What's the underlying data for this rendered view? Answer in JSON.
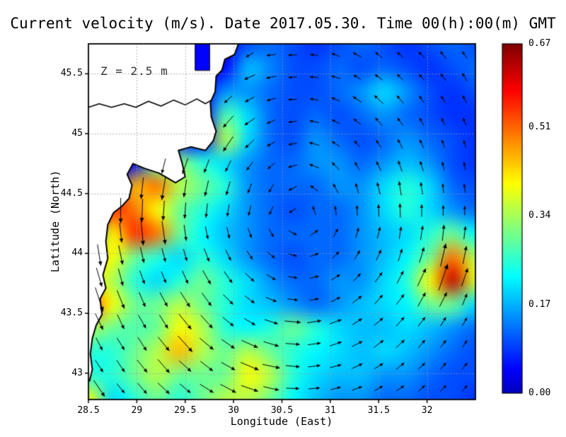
{
  "chart_data": {
    "type": "heatmap",
    "title": "Current velocity (m/s). Date 2017.05.30. Time 00(h):00(m) GMT",
    "annotation": "Z = 2.5 m",
    "xlabel": "Longitude (East)",
    "ylabel": "Latitude (North)",
    "units": "m/s",
    "colormap": "jet",
    "vmin": 0,
    "vmax": 0.67,
    "xlim": [
      28.5,
      32.5
    ],
    "ylim": [
      42.78,
      45.75
    ],
    "xticks": [
      28.5,
      29,
      29.5,
      30,
      30.5,
      31,
      31.5,
      32
    ],
    "xtick_labels": [
      "28.5",
      "29",
      "29.5",
      "30",
      "30.5",
      "31",
      "31.5",
      "32"
    ],
    "yticks": [
      43,
      43.5,
      44,
      44.5,
      45,
      45.5
    ],
    "ytick_labels": [
      "43",
      "43.5",
      "44",
      "44.5",
      "45",
      "45.5"
    ],
    "colorbar_ticks": [
      0.67,
      0.51,
      0.34,
      0.17,
      0
    ],
    "colorbar_tick_labels": [
      "0.67",
      "0.51",
      "0.34",
      "0.17",
      "0.00"
    ],
    "grid": {
      "cols": 18,
      "rows": 16,
      "origin": "top-left",
      "speed": [
        [
          0.05,
          0.05,
          0.05,
          0.05,
          0.05,
          0.05,
          0.05,
          0.1,
          0.12,
          0.1,
          0.08,
          0.1,
          0.12,
          0.1,
          0.08,
          0.1,
          0.12,
          0.1
        ],
        [
          0.05,
          0.05,
          0.05,
          0.05,
          0.05,
          0.05,
          0.05,
          0.18,
          0.14,
          0.1,
          0.1,
          0.12,
          0.1,
          0.12,
          0.1,
          0.08,
          0.1,
          0.12
        ],
        [
          0.05,
          0.05,
          0.05,
          0.05,
          0.05,
          0.05,
          0.15,
          0.15,
          0.12,
          0.1,
          0.1,
          0.12,
          0.15,
          0.2,
          0.15,
          0.1,
          0.08,
          0.1
        ],
        [
          0.05,
          0.05,
          0.05,
          0.05,
          0.05,
          0.05,
          0.28,
          0.2,
          0.12,
          0.1,
          0.12,
          0.1,
          0.12,
          0.15,
          0.12,
          0.1,
          0.08,
          0.08
        ],
        [
          0.05,
          0.05,
          0.05,
          0.05,
          0.05,
          0.05,
          0.35,
          0.2,
          0.12,
          0.1,
          0.15,
          0.12,
          0.1,
          0.12,
          0.15,
          0.12,
          0.1,
          0.08
        ],
        [
          0.05,
          0.05,
          0.05,
          0.28,
          0.32,
          0.25,
          0.2,
          0.15,
          0.12,
          0.12,
          0.15,
          0.15,
          0.12,
          0.15,
          0.18,
          0.15,
          0.1,
          0.08
        ],
        [
          0.05,
          0.05,
          0.45,
          0.5,
          0.35,
          0.3,
          0.25,
          0.15,
          0.12,
          0.12,
          0.12,
          0.15,
          0.15,
          0.2,
          0.25,
          0.2,
          0.12,
          0.1
        ],
        [
          0.05,
          0.55,
          0.5,
          0.4,
          0.3,
          0.25,
          0.2,
          0.15,
          0.12,
          0.1,
          0.12,
          0.12,
          0.15,
          0.2,
          0.25,
          0.2,
          0.15,
          0.12
        ],
        [
          0.05,
          0.4,
          0.55,
          0.5,
          0.3,
          0.22,
          0.18,
          0.15,
          0.12,
          0.12,
          0.12,
          0.12,
          0.15,
          0.18,
          0.2,
          0.25,
          0.3,
          0.22
        ],
        [
          0.45,
          0.4,
          0.3,
          0.25,
          0.2,
          0.25,
          0.2,
          0.15,
          0.12,
          0.1,
          0.12,
          0.12,
          0.15,
          0.18,
          0.22,
          0.3,
          0.5,
          0.35
        ],
        [
          0.4,
          0.35,
          0.25,
          0.2,
          0.25,
          0.3,
          0.25,
          0.2,
          0.15,
          0.12,
          0.12,
          0.15,
          0.15,
          0.2,
          0.25,
          0.4,
          0.62,
          0.38
        ],
        [
          0.55,
          0.4,
          0.3,
          0.3,
          0.35,
          0.3,
          0.25,
          0.2,
          0.18,
          0.15,
          0.12,
          0.15,
          0.18,
          0.2,
          0.22,
          0.3,
          0.3,
          0.2
        ],
        [
          0.35,
          0.3,
          0.28,
          0.3,
          0.4,
          0.35,
          0.25,
          0.22,
          0.25,
          0.3,
          0.25,
          0.2,
          0.18,
          0.18,
          0.2,
          0.18,
          0.15,
          0.12
        ],
        [
          0.25,
          0.25,
          0.3,
          0.35,
          0.45,
          0.35,
          0.3,
          0.35,
          0.3,
          0.25,
          0.22,
          0.2,
          0.18,
          0.2,
          0.18,
          0.15,
          0.12,
          0.1
        ],
        [
          0.25,
          0.25,
          0.3,
          0.35,
          0.3,
          0.3,
          0.3,
          0.4,
          0.35,
          0.25,
          0.2,
          0.18,
          0.18,
          0.15,
          0.15,
          0.12,
          0.1,
          0.1
        ],
        [
          0.4,
          0.2,
          0.25,
          0.3,
          0.25,
          0.3,
          0.35,
          0.35,
          0.3,
          0.22,
          0.18,
          0.15,
          0.15,
          0.12,
          0.12,
          0.1,
          0.1,
          0.08
        ]
      ],
      "direction_deg": [
        [
          0,
          0,
          0,
          0,
          0,
          0,
          0,
          -150,
          -172,
          -178,
          172,
          158,
          152,
          141,
          138,
          134,
          128,
          124
        ],
        [
          0,
          0,
          0,
          0,
          0,
          0,
          0,
          -156,
          -168,
          -175,
          176,
          163,
          149,
          143,
          134,
          131,
          126,
          121
        ],
        [
          0,
          0,
          0,
          0,
          0,
          0,
          -138,
          -151,
          -163,
          -176,
          169,
          157,
          146,
          137,
          131,
          124,
          121,
          117
        ],
        [
          0,
          0,
          0,
          0,
          0,
          0,
          -131,
          -146,
          -157,
          -171,
          167,
          153,
          141,
          131,
          126,
          119,
          116,
          113
        ],
        [
          0,
          0,
          0,
          0,
          0,
          0,
          -124,
          -137,
          -152,
          -169,
          164,
          146,
          133,
          124,
          117,
          114,
          109,
          107
        ],
        [
          0,
          0,
          0,
          -104,
          -109,
          -111,
          -117,
          -127,
          -141,
          -164,
          159,
          136,
          121,
          116,
          109,
          107,
          103,
          101
        ],
        [
          0,
          0,
          -96,
          -99,
          -99,
          -103,
          -106,
          -111,
          -121,
          -153,
          144,
          119,
          107,
          104,
          99,
          99,
          96,
          97
        ],
        [
          0,
          -90,
          -92,
          -94,
          -94,
          -96,
          -99,
          -103,
          -114,
          -148,
          108,
          97,
          93,
          92,
          92,
          90,
          89,
          90
        ],
        [
          0,
          -84,
          -85,
          -82,
          -82,
          -79,
          -77,
          -70,
          -61,
          -28,
          34,
          62,
          74,
          76,
          81,
          81,
          84,
          83
        ],
        [
          -81,
          -78,
          -77,
          -75,
          -74,
          -69,
          -64,
          -57,
          -40,
          -15,
          21,
          44,
          59,
          65,
          72,
          73,
          77,
          79
        ],
        [
          -74,
          -75,
          -70,
          -68,
          -66,
          -60,
          -55,
          -43,
          -30,
          -8,
          14,
          32,
          47,
          54,
          63,
          65,
          71,
          71
        ],
        [
          -72,
          -68,
          -67,
          -62,
          -58,
          -54,
          -45,
          -37,
          -22,
          -8,
          11,
          27,
          37,
          49,
          53,
          61,
          63,
          68
        ],
        [
          -65,
          -65,
          -60,
          -58,
          -51,
          -48,
          -39,
          -31,
          -18,
          -5,
          9,
          20,
          33,
          40,
          49,
          52,
          59,
          60
        ],
        [
          -63,
          -58,
          -57,
          -51,
          -48,
          -40,
          -35,
          -24,
          -17,
          -4,
          8,
          19,
          27,
          37,
          42,
          49,
          52,
          58
        ],
        [
          -57,
          -56,
          -51,
          -49,
          -42,
          -38,
          -29,
          -23,
          -12,
          -5,
          7,
          15,
          25,
          31,
          39,
          43,
          50,
          52
        ],
        [
          -56,
          -51,
          -49,
          -43,
          -40,
          -32,
          -28,
          -19,
          -13,
          -2,
          6,
          15,
          20,
          29,
          34,
          41,
          44,
          50
        ]
      ],
      "land_mask": [
        [
          1,
          1,
          1,
          1,
          1,
          1,
          1,
          0,
          0,
          0,
          0,
          0,
          0,
          0,
          0,
          0,
          0,
          0
        ],
        [
          1,
          1,
          1,
          1,
          1,
          1,
          1,
          0,
          0,
          0,
          0,
          0,
          0,
          0,
          0,
          0,
          0,
          0
        ],
        [
          1,
          1,
          1,
          1,
          1,
          1,
          0,
          0,
          0,
          0,
          0,
          0,
          0,
          0,
          0,
          0,
          0,
          0
        ],
        [
          1,
          1,
          1,
          1,
          1,
          1,
          0,
          0,
          0,
          0,
          0,
          0,
          0,
          0,
          0,
          0,
          0,
          0
        ],
        [
          1,
          1,
          1,
          1,
          1,
          1,
          0,
          0,
          0,
          0,
          0,
          0,
          0,
          0,
          0,
          0,
          0,
          0
        ],
        [
          1,
          1,
          1,
          0,
          0,
          0,
          0,
          0,
          0,
          0,
          0,
          0,
          0,
          0,
          0,
          0,
          0,
          0
        ],
        [
          1,
          1,
          0,
          0,
          0,
          0,
          0,
          0,
          0,
          0,
          0,
          0,
          0,
          0,
          0,
          0,
          0,
          0
        ],
        [
          1,
          0,
          0,
          0,
          0,
          0,
          0,
          0,
          0,
          0,
          0,
          0,
          0,
          0,
          0,
          0,
          0,
          0
        ],
        [
          1,
          0,
          0,
          0,
          0,
          0,
          0,
          0,
          0,
          0,
          0,
          0,
          0,
          0,
          0,
          0,
          0,
          0
        ],
        [
          0,
          0,
          0,
          0,
          0,
          0,
          0,
          0,
          0,
          0,
          0,
          0,
          0,
          0,
          0,
          0,
          0,
          0
        ],
        [
          0,
          0,
          0,
          0,
          0,
          0,
          0,
          0,
          0,
          0,
          0,
          0,
          0,
          0,
          0,
          0,
          0,
          0
        ],
        [
          0,
          0,
          0,
          0,
          0,
          0,
          0,
          0,
          0,
          0,
          0,
          0,
          0,
          0,
          0,
          0,
          0,
          0
        ],
        [
          0,
          0,
          0,
          0,
          0,
          0,
          0,
          0,
          0,
          0,
          0,
          0,
          0,
          0,
          0,
          0,
          0,
          0
        ],
        [
          0,
          0,
          0,
          0,
          0,
          0,
          0,
          0,
          0,
          0,
          0,
          0,
          0,
          0,
          0,
          0,
          0,
          0
        ],
        [
          0,
          0,
          0,
          0,
          0,
          0,
          0,
          0,
          0,
          0,
          0,
          0,
          0,
          0,
          0,
          0,
          0,
          0
        ],
        [
          0,
          0,
          0,
          0,
          0,
          0,
          0,
          0,
          0,
          0,
          0,
          0,
          0,
          0,
          0,
          0,
          0,
          0
        ]
      ]
    },
    "coastline": [
      [
        30.05,
        45.75
      ],
      [
        30.01,
        45.66
      ],
      [
        29.91,
        45.62
      ],
      [
        29.88,
        45.53
      ],
      [
        29.82,
        45.48
      ],
      [
        29.81,
        45.35
      ],
      [
        29.76,
        45.26
      ],
      [
        29.77,
        45.14
      ],
      [
        29.82,
        45.02
      ],
      [
        29.79,
        44.94
      ],
      [
        29.71,
        44.86
      ],
      [
        29.56,
        44.89
      ],
      [
        29.43,
        44.86
      ],
      [
        29.47,
        44.75
      ],
      [
        29.5,
        44.64
      ],
      [
        29.4,
        44.59
      ],
      [
        29.23,
        44.67
      ],
      [
        29.08,
        44.71
      ],
      [
        28.96,
        44.75
      ],
      [
        28.9,
        44.66
      ],
      [
        28.95,
        44.57
      ],
      [
        28.92,
        44.46
      ],
      [
        28.84,
        44.39
      ],
      [
        28.76,
        44.34
      ],
      [
        28.7,
        44.24
      ],
      [
        28.68,
        44.1
      ],
      [
        28.7,
        43.96
      ],
      [
        28.65,
        43.82
      ],
      [
        28.68,
        43.71
      ],
      [
        28.62,
        43.62
      ],
      [
        28.64,
        43.49
      ],
      [
        28.58,
        43.4
      ],
      [
        28.54,
        43.29
      ],
      [
        28.52,
        43.16
      ],
      [
        28.54,
        43.03
      ],
      [
        28.51,
        42.93
      ]
    ],
    "river": [
      [
        28.5,
        45.22
      ],
      [
        28.61,
        45.25
      ],
      [
        28.74,
        45.22
      ],
      [
        28.87,
        45.25
      ],
      [
        28.99,
        45.22
      ],
      [
        29.12,
        45.27
      ],
      [
        29.25,
        45.23
      ],
      [
        29.38,
        45.28
      ],
      [
        29.5,
        45.24
      ],
      [
        29.62,
        45.29
      ],
      [
        29.71,
        45.25
      ],
      [
        29.77,
        45.28
      ]
    ],
    "lagoon": {
      "lon0": 29.6,
      "lon1": 29.75,
      "lat0": 45.53,
      "lat1": 45.75
    }
  }
}
